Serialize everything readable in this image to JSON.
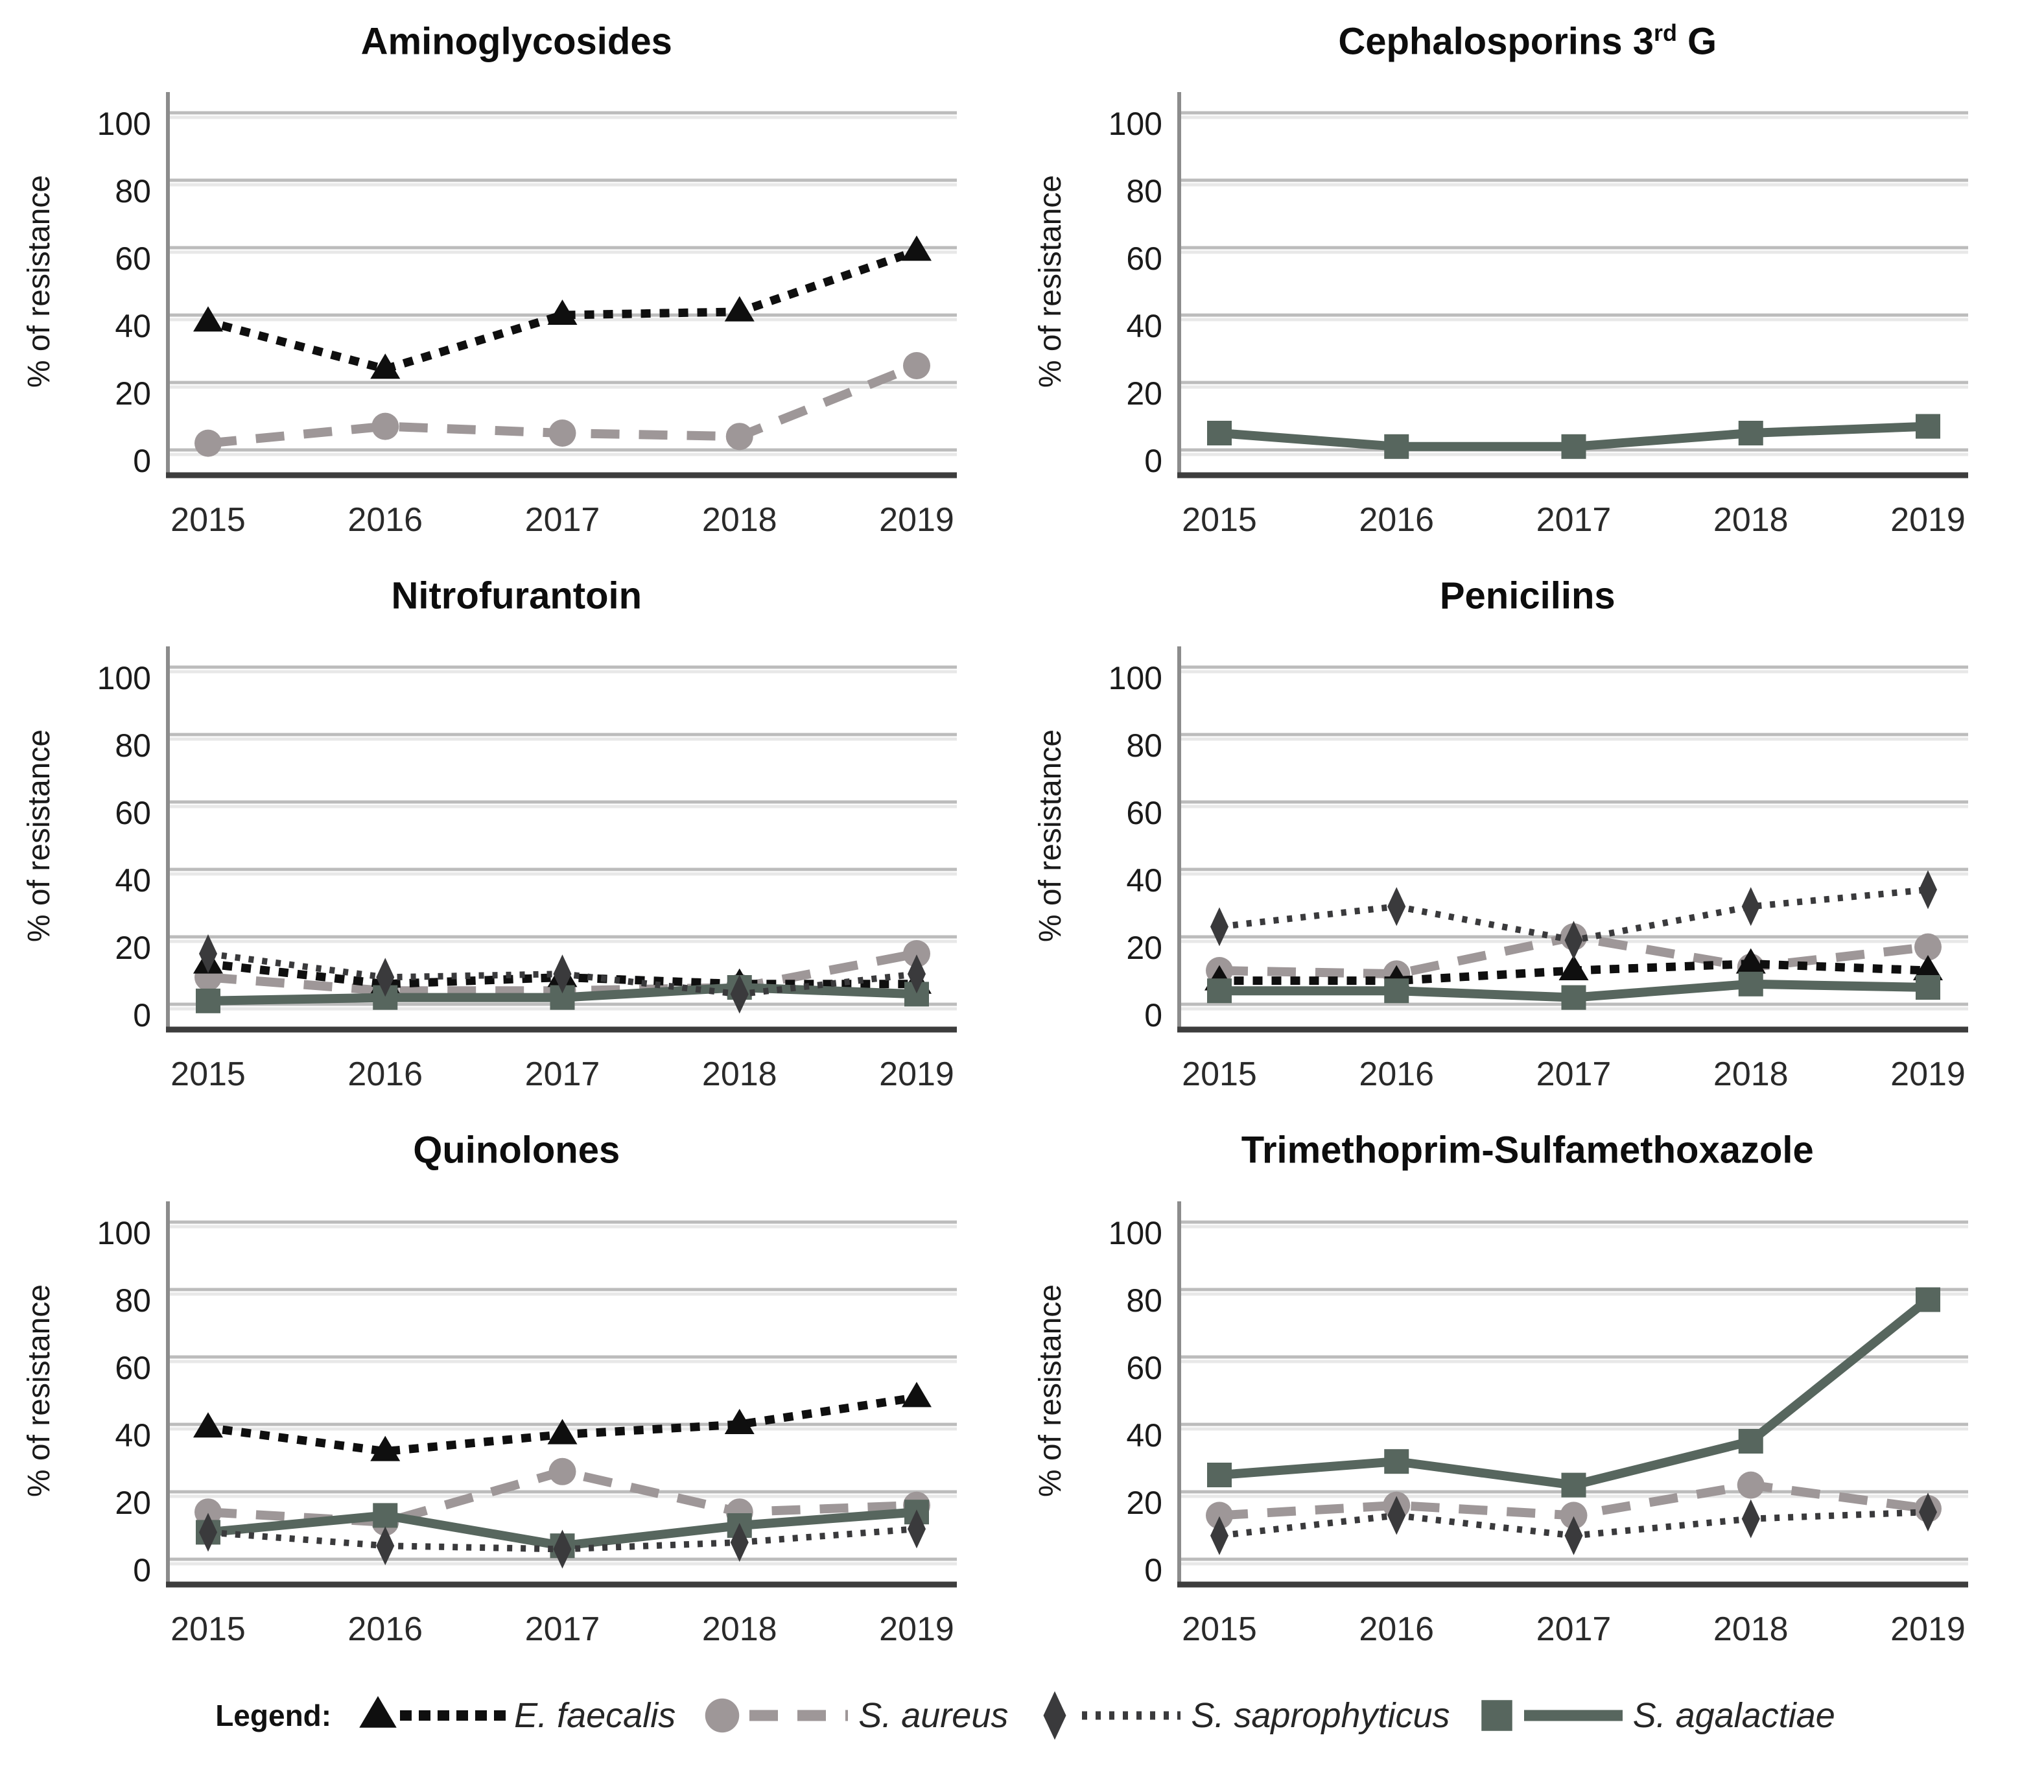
{
  "page": {
    "background": "#ffffff"
  },
  "axes": {
    "ylabel": "% of resistance",
    "ylim": [
      0,
      100
    ],
    "yticks": [
      0,
      20,
      40,
      60,
      80,
      100
    ],
    "x_categories": [
      "2015",
      "2016",
      "2017",
      "2018",
      "2019"
    ],
    "grid": true,
    "gridline_color": "#bcbcbc",
    "gridline_shadow_color": "#e8e8e8",
    "left_spine_color": "#8c8c8c",
    "bottom_frame_color": "#3d3d3d",
    "tick_text_color": "#1a1a1a",
    "year_text_color": "#2a2a2a"
  },
  "series_styles": {
    "E. faecalis": {
      "marker": "triangle",
      "color": "#0f0f0f",
      "line": "dotted-large"
    },
    "S. aureus": {
      "marker": "circle",
      "color": "#9e9798",
      "line": "dashed"
    },
    "S. saprophyticus": {
      "marker": "diamond",
      "color": "#3a3a3c",
      "line": "dotted-fine"
    },
    "S. agalactiae": {
      "marker": "square",
      "color": "#57665e",
      "line": "solid"
    }
  },
  "chart_data": [
    {
      "type": "line",
      "title_pre": "Aminoglycosides",
      "title_sup": "",
      "title_post": "",
      "ylabel": "% of resistance",
      "x": [
        2015,
        2016,
        2017,
        2018,
        2019
      ],
      "ylim": [
        0,
        100
      ],
      "series": [
        {
          "name": "S. aureus",
          "values": [
            2,
            7,
            5,
            4,
            25
          ]
        },
        {
          "name": "E. faecalis",
          "values": [
            38,
            24,
            40,
            41,
            59
          ]
        }
      ]
    },
    {
      "type": "line",
      "title_pre": "Cephalosporins 3",
      "title_sup": "rd",
      "title_post": " G",
      "ylabel": "% of resistance",
      "x": [
        2015,
        2016,
        2017,
        2018,
        2019
      ],
      "ylim": [
        0,
        100
      ],
      "series": [
        {
          "name": "S. agalactiae",
          "values": [
            5,
            1,
            1,
            5,
            7
          ]
        }
      ]
    },
    {
      "type": "line",
      "title_pre": "Nitrofurantoin",
      "title_sup": "",
      "title_post": "",
      "ylabel": "% of resistance",
      "x": [
        2015,
        2016,
        2017,
        2018,
        2019
      ],
      "ylim": [
        0,
        100
      ],
      "series": [
        {
          "name": "S. aureus",
          "values": [
            8,
            4,
            4,
            5,
            15
          ]
        },
        {
          "name": "E. faecalis",
          "values": [
            12,
            6,
            8,
            6,
            6
          ]
        },
        {
          "name": "S. agalactiae",
          "values": [
            1,
            2,
            2,
            5,
            3
          ]
        },
        {
          "name": "S. saprophyticus",
          "values": [
            15,
            8,
            9,
            3,
            9
          ]
        }
      ]
    },
    {
      "type": "line",
      "title_pre": "Penicilins",
      "title_sup": "",
      "title_post": "",
      "ylabel": "% of resistance",
      "x": [
        2015,
        2016,
        2017,
        2018,
        2019
      ],
      "ylim": [
        0,
        100
      ],
      "series": [
        {
          "name": "S. aureus",
          "values": [
            10,
            9,
            20,
            11,
            17
          ]
        },
        {
          "name": "E. faecalis",
          "values": [
            7,
            7,
            10,
            12,
            10
          ]
        },
        {
          "name": "S. agalactiae",
          "values": [
            4,
            4,
            2,
            6,
            5
          ]
        },
        {
          "name": "S. saprophyticus",
          "values": [
            23,
            29,
            19,
            29,
            34
          ]
        }
      ]
    },
    {
      "type": "line",
      "title_pre": "Quinolones",
      "title_sup": "",
      "title_post": "",
      "ylabel": "% of resistance",
      "x": [
        2015,
        2016,
        2017,
        2018,
        2019
      ],
      "ylim": [
        0,
        100
      ],
      "series": [
        {
          "name": "S. aureus",
          "values": [
            14,
            11,
            26,
            14,
            16
          ]
        },
        {
          "name": "E. faecalis",
          "values": [
            39,
            32,
            37,
            40,
            48
          ]
        },
        {
          "name": "S. agalactiae",
          "values": [
            8,
            13,
            4,
            10,
            14
          ]
        },
        {
          "name": "S. saprophyticus",
          "values": [
            8,
            4,
            3,
            5,
            9
          ]
        }
      ]
    },
    {
      "type": "line",
      "title_pre": "Trimethoprim-Sulfamethoxazole",
      "title_sup": "",
      "title_post": "",
      "ylabel": "% of resistance",
      "x": [
        2015,
        2016,
        2017,
        2018,
        2019
      ],
      "ylim": [
        0,
        100
      ],
      "series": [
        {
          "name": "S. aureus",
          "values": [
            13,
            16,
            13,
            22,
            15
          ]
        },
        {
          "name": "S. agalactiae",
          "values": [
            25,
            29,
            22,
            35,
            77
          ]
        },
        {
          "name": "S. saprophyticus",
          "values": [
            7,
            13,
            7,
            12,
            14
          ]
        }
      ]
    }
  ],
  "legend": {
    "label": "Legend:",
    "entries": [
      "E. faecalis",
      "S. aureus",
      "S. saprophyticus",
      "S. agalactiae"
    ]
  }
}
